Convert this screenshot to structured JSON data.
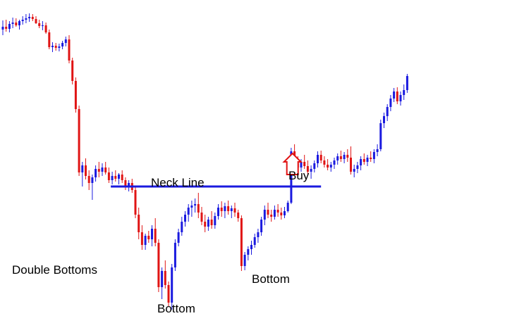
{
  "chart_data": {
    "type": "candlestick",
    "title": "",
    "xlabel": "",
    "ylabel": "",
    "grid": false,
    "legend": "none",
    "colors": {
      "bullish": "#1a1adf",
      "bearish": "#e01414",
      "neckline": "#1a1adf",
      "buy_arrow": "#e01414"
    },
    "y_reading": "price level read top-down on an unlabeled axis (higher = higher price)",
    "candles": [
      {
        "o": 428,
        "h": 441,
        "l": 420,
        "c": 432
      },
      {
        "o": 432,
        "h": 442,
        "l": 425,
        "c": 429
      },
      {
        "o": 429,
        "h": 440,
        "l": 424,
        "c": 436
      },
      {
        "o": 436,
        "h": 445,
        "l": 430,
        "c": 438
      },
      {
        "o": 438,
        "h": 444,
        "l": 432,
        "c": 434
      },
      {
        "o": 434,
        "h": 442,
        "l": 428,
        "c": 440
      },
      {
        "o": 440,
        "h": 447,
        "l": 435,
        "c": 442
      },
      {
        "o": 442,
        "h": 450,
        "l": 437,
        "c": 444
      },
      {
        "o": 444,
        "h": 451,
        "l": 439,
        "c": 446
      },
      {
        "o": 446,
        "h": 450,
        "l": 440,
        "c": 443
      },
      {
        "o": 443,
        "h": 447,
        "l": 436,
        "c": 437
      },
      {
        "o": 437,
        "h": 442,
        "l": 430,
        "c": 433
      },
      {
        "o": 433,
        "h": 440,
        "l": 427,
        "c": 434
      },
      {
        "o": 434,
        "h": 438,
        "l": 422,
        "c": 424
      },
      {
        "o": 424,
        "h": 428,
        "l": 400,
        "c": 403
      },
      {
        "o": 403,
        "h": 410,
        "l": 396,
        "c": 405
      },
      {
        "o": 405,
        "h": 409,
        "l": 398,
        "c": 402
      },
      {
        "o": 402,
        "h": 408,
        "l": 397,
        "c": 404
      },
      {
        "o": 404,
        "h": 412,
        "l": 400,
        "c": 409
      },
      {
        "o": 409,
        "h": 418,
        "l": 404,
        "c": 414
      },
      {
        "o": 414,
        "h": 420,
        "l": 380,
        "c": 384
      },
      {
        "o": 384,
        "h": 388,
        "l": 350,
        "c": 355
      },
      {
        "o": 355,
        "h": 360,
        "l": 310,
        "c": 315
      },
      {
        "o": 315,
        "h": 320,
        "l": 220,
        "c": 225
      },
      {
        "o": 225,
        "h": 240,
        "l": 205,
        "c": 235
      },
      {
        "o": 235,
        "h": 245,
        "l": 215,
        "c": 220
      },
      {
        "o": 220,
        "h": 228,
        "l": 200,
        "c": 210
      },
      {
        "o": 210,
        "h": 222,
        "l": 186,
        "c": 218
      },
      {
        "o": 218,
        "h": 235,
        "l": 212,
        "c": 230
      },
      {
        "o": 230,
        "h": 240,
        "l": 218,
        "c": 226
      },
      {
        "o": 226,
        "h": 238,
        "l": 220,
        "c": 232
      },
      {
        "o": 232,
        "h": 240,
        "l": 222,
        "c": 225
      },
      {
        "o": 225,
        "h": 232,
        "l": 210,
        "c": 214
      },
      {
        "o": 214,
        "h": 226,
        "l": 208,
        "c": 220
      },
      {
        "o": 220,
        "h": 228,
        "l": 212,
        "c": 216
      },
      {
        "o": 216,
        "h": 224,
        "l": 208,
        "c": 222
      },
      {
        "o": 222,
        "h": 228,
        "l": 210,
        "c": 214
      },
      {
        "o": 214,
        "h": 218,
        "l": 200,
        "c": 206
      },
      {
        "o": 206,
        "h": 214,
        "l": 198,
        "c": 210
      },
      {
        "o": 210,
        "h": 216,
        "l": 196,
        "c": 200
      },
      {
        "o": 200,
        "h": 205,
        "l": 160,
        "c": 165
      },
      {
        "o": 165,
        "h": 175,
        "l": 130,
        "c": 140
      },
      {
        "o": 140,
        "h": 150,
        "l": 115,
        "c": 122
      },
      {
        "o": 122,
        "h": 138,
        "l": 115,
        "c": 135
      },
      {
        "o": 135,
        "h": 142,
        "l": 125,
        "c": 130
      },
      {
        "o": 130,
        "h": 150,
        "l": 120,
        "c": 145
      },
      {
        "o": 145,
        "h": 160,
        "l": 120,
        "c": 125
      },
      {
        "o": 125,
        "h": 130,
        "l": 55,
        "c": 62
      },
      {
        "o": 62,
        "h": 90,
        "l": 45,
        "c": 85
      },
      {
        "o": 85,
        "h": 100,
        "l": 60,
        "c": 65
      },
      {
        "o": 65,
        "h": 70,
        "l": 35,
        "c": 40
      },
      {
        "o": 40,
        "h": 95,
        "l": 30,
        "c": 90
      },
      {
        "o": 90,
        "h": 130,
        "l": 85,
        "c": 125
      },
      {
        "o": 125,
        "h": 145,
        "l": 120,
        "c": 140
      },
      {
        "o": 140,
        "h": 162,
        "l": 135,
        "c": 155
      },
      {
        "o": 155,
        "h": 170,
        "l": 148,
        "c": 165
      },
      {
        "o": 165,
        "h": 180,
        "l": 155,
        "c": 175
      },
      {
        "o": 175,
        "h": 185,
        "l": 162,
        "c": 178
      },
      {
        "o": 178,
        "h": 188,
        "l": 168,
        "c": 180
      },
      {
        "o": 180,
        "h": 196,
        "l": 160,
        "c": 168
      },
      {
        "o": 168,
        "h": 176,
        "l": 150,
        "c": 155
      },
      {
        "o": 155,
        "h": 165,
        "l": 140,
        "c": 148
      },
      {
        "o": 148,
        "h": 162,
        "l": 142,
        "c": 158
      },
      {
        "o": 158,
        "h": 170,
        "l": 145,
        "c": 150
      },
      {
        "o": 150,
        "h": 168,
        "l": 145,
        "c": 163
      },
      {
        "o": 163,
        "h": 180,
        "l": 158,
        "c": 175
      },
      {
        "o": 175,
        "h": 184,
        "l": 162,
        "c": 170
      },
      {
        "o": 170,
        "h": 182,
        "l": 160,
        "c": 177
      },
      {
        "o": 177,
        "h": 185,
        "l": 165,
        "c": 170
      },
      {
        "o": 170,
        "h": 178,
        "l": 160,
        "c": 174
      },
      {
        "o": 174,
        "h": 182,
        "l": 162,
        "c": 168
      },
      {
        "o": 168,
        "h": 172,
        "l": 155,
        "c": 160
      },
      {
        "o": 160,
        "h": 164,
        "l": 85,
        "c": 92
      },
      {
        "o": 92,
        "h": 112,
        "l": 86,
        "c": 108
      },
      {
        "o": 108,
        "h": 120,
        "l": 100,
        "c": 116
      },
      {
        "o": 116,
        "h": 128,
        "l": 108,
        "c": 122
      },
      {
        "o": 122,
        "h": 138,
        "l": 118,
        "c": 133
      },
      {
        "o": 133,
        "h": 145,
        "l": 125,
        "c": 140
      },
      {
        "o": 140,
        "h": 162,
        "l": 135,
        "c": 158
      },
      {
        "o": 158,
        "h": 178,
        "l": 150,
        "c": 172
      },
      {
        "o": 172,
        "h": 182,
        "l": 160,
        "c": 165
      },
      {
        "o": 165,
        "h": 172,
        "l": 155,
        "c": 162
      },
      {
        "o": 162,
        "h": 178,
        "l": 158,
        "c": 172
      },
      {
        "o": 172,
        "h": 180,
        "l": 162,
        "c": 168
      },
      {
        "o": 168,
        "h": 175,
        "l": 158,
        "c": 164
      },
      {
        "o": 164,
        "h": 176,
        "l": 160,
        "c": 170
      },
      {
        "o": 170,
        "h": 185,
        "l": 168,
        "c": 182
      },
      {
        "o": 182,
        "h": 260,
        "l": 180,
        "c": 255
      },
      {
        "o": 255,
        "h": 265,
        "l": 235,
        "c": 238
      },
      {
        "o": 238,
        "h": 248,
        "l": 228,
        "c": 232
      },
      {
        "o": 232,
        "h": 244,
        "l": 226,
        "c": 240
      },
      {
        "o": 240,
        "h": 250,
        "l": 230,
        "c": 234
      },
      {
        "o": 234,
        "h": 242,
        "l": 222,
        "c": 226
      },
      {
        "o": 226,
        "h": 235,
        "l": 216,
        "c": 230
      },
      {
        "o": 230,
        "h": 242,
        "l": 225,
        "c": 238
      },
      {
        "o": 238,
        "h": 255,
        "l": 232,
        "c": 250
      },
      {
        "o": 250,
        "h": 256,
        "l": 238,
        "c": 242
      },
      {
        "o": 242,
        "h": 248,
        "l": 232,
        "c": 236
      },
      {
        "o": 236,
        "h": 244,
        "l": 228,
        "c": 232
      },
      {
        "o": 232,
        "h": 240,
        "l": 226,
        "c": 236
      },
      {
        "o": 236,
        "h": 246,
        "l": 230,
        "c": 242
      },
      {
        "o": 242,
        "h": 252,
        "l": 236,
        "c": 248
      },
      {
        "o": 248,
        "h": 256,
        "l": 240,
        "c": 244
      },
      {
        "o": 244,
        "h": 254,
        "l": 238,
        "c": 250
      },
      {
        "o": 250,
        "h": 258,
        "l": 240,
        "c": 246
      },
      {
        "o": 246,
        "h": 262,
        "l": 222,
        "c": 226
      },
      {
        "o": 226,
        "h": 236,
        "l": 218,
        "c": 230
      },
      {
        "o": 230,
        "h": 240,
        "l": 224,
        "c": 235
      },
      {
        "o": 235,
        "h": 248,
        "l": 228,
        "c": 244
      },
      {
        "o": 244,
        "h": 252,
        "l": 236,
        "c": 240
      },
      {
        "o": 240,
        "h": 250,
        "l": 234,
        "c": 246
      },
      {
        "o": 246,
        "h": 255,
        "l": 240,
        "c": 244
      },
      {
        "o": 244,
        "h": 258,
        "l": 238,
        "c": 254
      },
      {
        "o": 254,
        "h": 265,
        "l": 248,
        "c": 258
      },
      {
        "o": 258,
        "h": 300,
        "l": 255,
        "c": 295
      },
      {
        "o": 295,
        "h": 310,
        "l": 288,
        "c": 305
      },
      {
        "o": 305,
        "h": 322,
        "l": 298,
        "c": 318
      },
      {
        "o": 318,
        "h": 335,
        "l": 312,
        "c": 330
      },
      {
        "o": 330,
        "h": 345,
        "l": 325,
        "c": 340
      },
      {
        "o": 340,
        "h": 346,
        "l": 322,
        "c": 326
      },
      {
        "o": 326,
        "h": 340,
        "l": 320,
        "c": 335
      },
      {
        "o": 335,
        "h": 350,
        "l": 328,
        "c": 342
      },
      {
        "o": 342,
        "h": 365,
        "l": 338,
        "c": 362
      }
    ],
    "neckline": {
      "level": 205,
      "from_candle": 33,
      "to_candle": 96
    },
    "buy_arrow": {
      "at_candle": 91,
      "base_level": 222,
      "tip_level": 252
    },
    "annotations": {
      "neck_line": "Neck Line",
      "buy": "Buy",
      "double_bottoms": "Double Bottoms",
      "bottom_1": "Bottom",
      "bottom_2": "Bottom"
    }
  }
}
